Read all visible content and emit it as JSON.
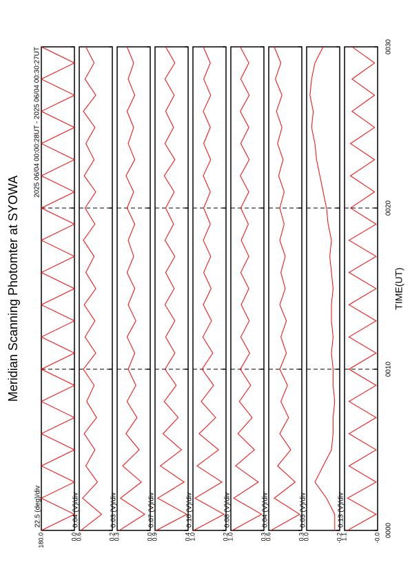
{
  "chart_data": {
    "type": "line",
    "title": "Meridian Scanning Photomter at SYOWA",
    "subtitle": "2025 06/04 00:00:28UT - 2025 06/04 00:30:27UT",
    "x_label": "TIME(UT)",
    "xlim": [
      0,
      30
    ],
    "xticks": [
      {
        "value": 0,
        "label": "0000"
      },
      {
        "value": 10,
        "label": "0010"
      },
      {
        "value": 20,
        "label": "0020"
      },
      {
        "value": 30,
        "label": "0030"
      }
    ],
    "x": [
      0,
      1,
      2,
      3,
      4,
      5,
      6,
      7,
      8,
      9,
      10,
      11,
      12,
      13,
      14,
      15,
      16,
      17,
      18,
      19,
      20,
      21,
      22,
      23,
      24,
      25,
      26,
      27,
      28,
      29,
      30
    ],
    "panels": [
      {
        "label": "22.5 (deg)/div",
        "color": "#ff0000",
        "ylim": [
          0,
          180
        ],
        "yticks": [
          {
            "value": 0,
            "label": "0.0"
          },
          {
            "value": 180,
            "label": "180.0"
          }
        ],
        "values": [
          180,
          0,
          180,
          0,
          180,
          0,
          180,
          0,
          180,
          0,
          180,
          0,
          180,
          0,
          180,
          0,
          180,
          0,
          180,
          0,
          180,
          0,
          180,
          0,
          180,
          0,
          180,
          0,
          180,
          0,
          180
        ]
      },
      {
        "label": "0.04 (V)/div",
        "color": "#ff0000",
        "ylim": [
          0.2,
          0.6
        ],
        "yticks": [
          0.2,
          0.6
        ],
        "values": [
          0.58,
          0.33,
          0.56,
          0.38,
          0.52,
          0.41,
          0.54,
          0.39,
          0.51,
          0.42,
          0.55,
          0.4,
          0.53,
          0.41,
          0.54,
          0.4,
          0.52,
          0.42,
          0.55,
          0.41,
          0.53,
          0.4,
          0.54,
          0.42,
          0.52,
          0.41,
          0.55,
          0.4,
          0.53,
          0.42,
          0.52
        ]
      },
      {
        "label": "0.03 (V)/div",
        "color": "#ff0000",
        "ylim": [
          0,
          0.3
        ],
        "yticks": [
          {
            "value": 0,
            "label": "0.0"
          },
          0.3
        ],
        "values": [
          0.28,
          0.05,
          0.27,
          0.08,
          0.25,
          0.1,
          0.22,
          0.12,
          0.21,
          0.13,
          0.2,
          0.14,
          0.21,
          0.13,
          0.2,
          0.14,
          0.21,
          0.15,
          0.2,
          0.14,
          0.21,
          0.15,
          0.22,
          0.14,
          0.2,
          0.15,
          0.21,
          0.14,
          0.2,
          0.15,
          0.21
        ]
      },
      {
        "label": "0.07 (V)/div",
        "color": "#ff0000",
        "ylim": [
          0.4,
          0.9
        ],
        "yticks": [
          0.4,
          0.9
        ],
        "values": [
          0.88,
          0.42,
          0.86,
          0.46,
          0.82,
          0.5,
          0.78,
          0.55,
          0.76,
          0.58,
          0.75,
          0.6,
          0.74,
          0.6,
          0.75,
          0.61,
          0.74,
          0.6,
          0.75,
          0.62,
          0.74,
          0.61,
          0.76,
          0.6,
          0.75,
          0.62,
          0.74,
          0.61,
          0.75,
          0.6,
          0.74
        ]
      },
      {
        "label": "0.10 (V)/div",
        "color": "#ff0000",
        "ylim": [
          0.2,
          1
        ],
        "yticks": [
          0.2,
          {
            "value": 1,
            "label": "1.0"
          }
        ],
        "values": [
          0.98,
          0.25,
          0.95,
          0.3,
          0.9,
          0.38,
          0.85,
          0.45,
          0.8,
          0.5,
          0.78,
          0.52,
          0.76,
          0.55,
          0.75,
          0.56,
          0.74,
          0.57,
          0.75,
          0.58,
          0.74,
          0.58,
          0.75,
          0.57,
          0.74,
          0.58,
          0.75,
          0.57,
          0.74,
          0.58,
          0.75
        ]
      },
      {
        "label": "0.08 (V)/div",
        "color": "#ff0000",
        "ylim": [
          0.3,
          1
        ],
        "yticks": [
          0.3,
          {
            "value": 1,
            "label": "1.0"
          }
        ],
        "values": [
          0.97,
          0.35,
          0.94,
          0.42,
          0.9,
          0.5,
          0.85,
          0.55,
          0.82,
          0.58,
          0.8,
          0.6,
          0.79,
          0.61,
          0.78,
          0.62,
          0.79,
          0.62,
          0.78,
          0.63,
          0.79,
          0.62,
          0.8,
          0.61,
          0.79,
          0.62,
          0.8,
          0.61,
          0.79,
          0.62,
          0.8
        ]
      },
      {
        "label": "0.04 (V)/div",
        "color": "#ff0000",
        "ylim": [
          0.3,
          0.6
        ],
        "yticks": [
          0.3,
          0.6
        ],
        "values": [
          0.58,
          0.32,
          0.55,
          0.36,
          0.52,
          0.4,
          0.5,
          0.42,
          0.49,
          0.43,
          0.5,
          0.44,
          0.49,
          0.44,
          0.5,
          0.45,
          0.49,
          0.45,
          0.5,
          0.46,
          0.5,
          0.46,
          0.51,
          0.47,
          0.52,
          0.48,
          0.53,
          0.48,
          0.54,
          0.49,
          0.55
        ]
      },
      {
        "label": "0.03 (V)/div",
        "color": "#ff0000",
        "ylim": [
          -0.2,
          0
        ],
        "yticks": [
          -0.2,
          {
            "value": 0,
            "label": "0.0"
          }
        ],
        "values": [
          -0.17,
          -0.17,
          -0.12,
          -0.05,
          -0.1,
          -0.15,
          -0.16,
          -0.16,
          -0.17,
          -0.16,
          -0.16,
          -0.15,
          -0.16,
          -0.15,
          -0.15,
          -0.16,
          -0.15,
          -0.14,
          -0.15,
          -0.13,
          -0.12,
          -0.1,
          -0.08,
          -0.06,
          -0.05,
          -0.03,
          -0.04,
          -0.02,
          -0.03,
          -0.05,
          -0.1
        ]
      },
      {
        "label": "0.13 (V)/div",
        "color": "#ff0000",
        "ylim": [
          0,
          1.1
        ],
        "yticks": [
          {
            "value": 0,
            "label": "-0.0"
          },
          1.1
        ],
        "values": [
          1.0,
          0.05,
          1.0,
          0.05,
          0.95,
          0.05,
          0.95,
          0.05,
          0.95,
          0.05,
          0.95,
          0.05,
          0.95,
          0.05,
          0.95,
          0.05,
          0.95,
          0.05,
          0.95,
          0.05,
          0.9,
          0.1,
          0.9,
          0.1,
          0.9,
          0.1,
          0.85,
          0.1,
          0.85,
          0.1,
          0.85
        ]
      }
    ]
  }
}
